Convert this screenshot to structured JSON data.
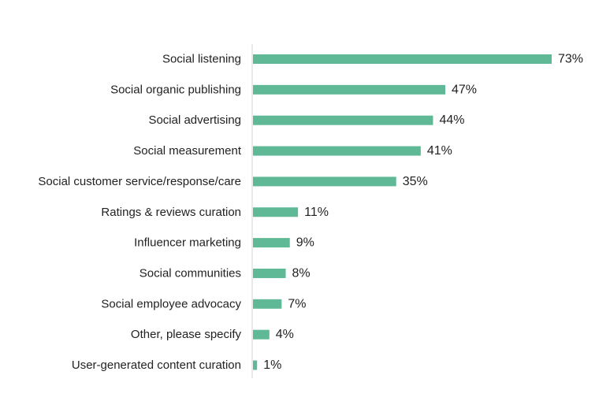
{
  "chart_data": {
    "type": "bar",
    "orientation": "horizontal",
    "categories": [
      "Social listening",
      "Social organic publishing",
      "Social advertising",
      "Social measurement",
      "Social customer service/response/care",
      "Ratings & reviews curation",
      "Influencer marketing",
      "Social communities",
      "Social employee advocacy",
      "Other, please specify",
      "User-generated content curation"
    ],
    "values": [
      73,
      47,
      44,
      41,
      35,
      11,
      9,
      8,
      7,
      4,
      1
    ],
    "value_labels": [
      "73%",
      "47%",
      "44%",
      "41%",
      "35%",
      "11%",
      "9%",
      "8%",
      "7%",
      "4%",
      "1%"
    ],
    "unit": "%",
    "title": "",
    "xlabel": "",
    "ylabel": "",
    "xlim": [
      0,
      73
    ],
    "grid": false,
    "legend": "none",
    "colors": {
      "bar": "#5fb896",
      "axis": "#d4d4d4",
      "text": "#222222"
    }
  }
}
